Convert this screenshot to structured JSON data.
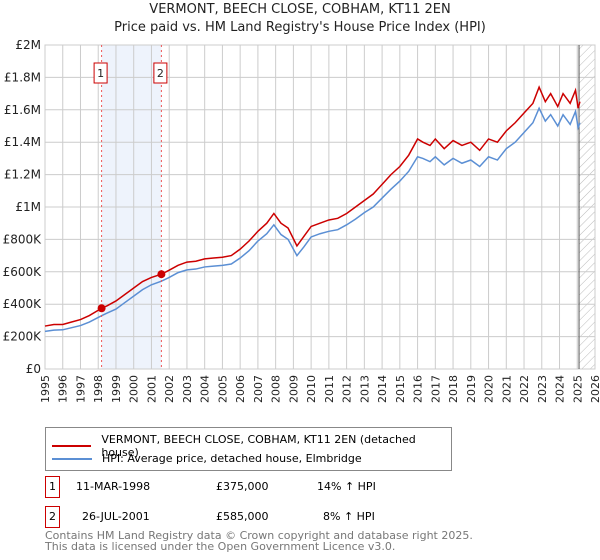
{
  "chart_data": {
    "type": "line",
    "title": "VERMONT, BEECH CLOSE, COBHAM, KT11 2EN",
    "subtitle": "Price paid vs. HM Land Registry's House Price Index (HPI)",
    "xlim": [
      1995,
      2026
    ],
    "ylim": [
      0,
      2000000
    ],
    "x_ticks": [
      "1995",
      "1996",
      "1997",
      "1998",
      "1999",
      "2000",
      "2001",
      "2002",
      "2003",
      "2004",
      "2005",
      "2006",
      "2007",
      "2008",
      "2009",
      "2010",
      "2011",
      "2012",
      "2013",
      "2014",
      "2015",
      "2016",
      "2017",
      "2018",
      "2019",
      "2020",
      "2021",
      "2022",
      "2023",
      "2024",
      "2025",
      "2026"
    ],
    "y_ticks": [
      {
        "v": 0,
        "label": "£0"
      },
      {
        "v": 200000,
        "label": "£200K"
      },
      {
        "v": 400000,
        "label": "£400K"
      },
      {
        "v": 600000,
        "label": "£600K"
      },
      {
        "v": 800000,
        "label": "£800K"
      },
      {
        "v": 1000000,
        "label": "£1M"
      },
      {
        "v": 1200000,
        "label": "£1.2M"
      },
      {
        "v": 1400000,
        "label": "£1.4M"
      },
      {
        "v": 1600000,
        "label": "£1.6M"
      },
      {
        "v": 1800000,
        "label": "£1.8M"
      },
      {
        "v": 2000000,
        "label": "£2M"
      }
    ],
    "series": [
      {
        "name": "VERMONT, BEECH CLOSE, COBHAM, KT11 2EN (detached house)",
        "color": "#cc0000",
        "x": [
          1995,
          1995.5,
          1996,
          1996.5,
          1997,
          1997.5,
          1998.19,
          1998.5,
          1999,
          1999.5,
          2000,
          2000.5,
          2001,
          2001.56,
          2002,
          2002.5,
          2003,
          2003.5,
          2004,
          2004.5,
          2005,
          2005.5,
          2006,
          2006.5,
          2007,
          2007.5,
          2007.9,
          2008.3,
          2008.7,
          2009.2,
          2009.6,
          2010,
          2010.5,
          2011,
          2011.5,
          2012,
          2012.5,
          2013,
          2013.5,
          2014,
          2014.5,
          2015,
          2015.5,
          2016,
          2016.3,
          2016.7,
          2017,
          2017.5,
          2018,
          2018.5,
          2019,
          2019.5,
          2020,
          2020.5,
          2021,
          2021.5,
          2022,
          2022.5,
          2022.85,
          2023.2,
          2023.5,
          2023.9,
          2024.2,
          2024.6,
          2024.9,
          2025.05,
          2025.15
        ],
        "y": [
          265000,
          275000,
          275000,
          290000,
          305000,
          330000,
          375000,
          390000,
          420000,
          460000,
          500000,
          540000,
          565000,
          585000,
          610000,
          640000,
          660000,
          665000,
          680000,
          685000,
          690000,
          700000,
          740000,
          790000,
          850000,
          900000,
          960000,
          900000,
          870000,
          760000,
          820000,
          880000,
          900000,
          920000,
          930000,
          960000,
          1000000,
          1040000,
          1080000,
          1140000,
          1200000,
          1250000,
          1320000,
          1420000,
          1400000,
          1380000,
          1420000,
          1360000,
          1410000,
          1380000,
          1400000,
          1350000,
          1420000,
          1400000,
          1470000,
          1520000,
          1580000,
          1640000,
          1740000,
          1650000,
          1700000,
          1620000,
          1700000,
          1640000,
          1720000,
          1610000,
          1650000
        ]
      },
      {
        "name": "HPI: Average price, detached house, Elmbridge",
        "color": "#5b8fd4",
        "x": [
          1995,
          1995.5,
          1996,
          1996.5,
          1997,
          1997.5,
          1998.19,
          1998.5,
          1999,
          1999.5,
          2000,
          2000.5,
          2001,
          2001.56,
          2002,
          2002.5,
          2003,
          2003.5,
          2004,
          2004.5,
          2005,
          2005.5,
          2006,
          2006.5,
          2007,
          2007.5,
          2007.9,
          2008.3,
          2008.7,
          2009.2,
          2009.6,
          2010,
          2010.5,
          2011,
          2011.5,
          2012,
          2012.5,
          2013,
          2013.5,
          2014,
          2014.5,
          2015,
          2015.5,
          2016,
          2016.3,
          2016.7,
          2017,
          2017.5,
          2018,
          2018.5,
          2019,
          2019.5,
          2020,
          2020.5,
          2021,
          2021.5,
          2022,
          2022.5,
          2022.85,
          2023.2,
          2023.5,
          2023.9,
          2024.2,
          2024.6,
          2024.9,
          2025.05,
          2025.15
        ],
        "y": [
          232000,
          240000,
          242000,
          255000,
          268000,
          290000,
          329000,
          345000,
          370000,
          410000,
          450000,
          490000,
          520000,
          542000,
          565000,
          595000,
          612000,
          617000,
          630000,
          635000,
          640000,
          648000,
          685000,
          730000,
          790000,
          835000,
          890000,
          830000,
          800000,
          700000,
          755000,
          815000,
          835000,
          850000,
          860000,
          890000,
          925000,
          965000,
          1000000,
          1055000,
          1110000,
          1160000,
          1220000,
          1310000,
          1300000,
          1280000,
          1310000,
          1260000,
          1300000,
          1270000,
          1290000,
          1250000,
          1310000,
          1290000,
          1360000,
          1400000,
          1460000,
          1520000,
          1610000,
          1530000,
          1570000,
          1500000,
          1570000,
          1510000,
          1590000,
          1490000,
          1520000
        ]
      }
    ],
    "sales": [
      {
        "n": "1",
        "x": 1998.19,
        "y": 375000
      },
      {
        "n": "2",
        "x": 2001.56,
        "y": 585000
      }
    ],
    "forecast_from": 2025.1
  },
  "table": [
    {
      "n": "1",
      "date": "11-MAR-1998",
      "price": "£375,000",
      "hpi": "14% ↑ HPI"
    },
    {
      "n": "2",
      "date": "26-JUL-2001",
      "price": "£585,000",
      "hpi": "8% ↑ HPI"
    }
  ],
  "footer": [
    "Contains HM Land Registry data © Crown copyright and database right 2025.",
    "This data is licensed under the Open Government Licence v3.0."
  ]
}
